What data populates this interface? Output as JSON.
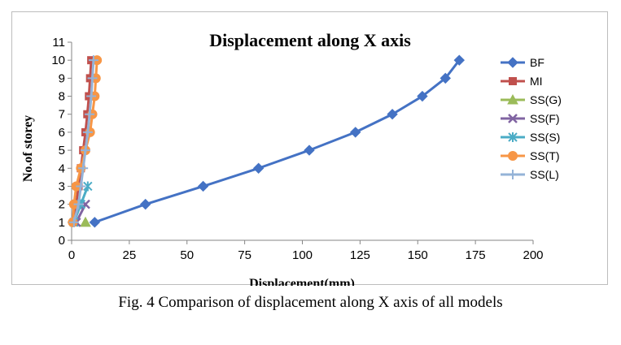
{
  "caption": "Fig. 4 Comparison of displacement along X axis of all models",
  "chart_data": {
    "type": "line",
    "title": "Displacement along X axis",
    "xlabel": "Displacement(mm)",
    "ylabel": "No.of storey",
    "xlim": [
      0,
      200
    ],
    "ylim": [
      0,
      11
    ],
    "xticks": [
      0,
      25,
      50,
      75,
      100,
      125,
      150,
      175,
      200
    ],
    "yticks": [
      0,
      1,
      2,
      3,
      4,
      5,
      6,
      7,
      8,
      9,
      10,
      11
    ],
    "grid": false,
    "legend_position": "right",
    "series": [
      {
        "name": "BF",
        "color": "#4472c4",
        "marker": "diamond",
        "points": [
          [
            10,
            1
          ],
          [
            32,
            2
          ],
          [
            57,
            3
          ],
          [
            81,
            4
          ],
          [
            103,
            5
          ],
          [
            123,
            6
          ],
          [
            139,
            7
          ],
          [
            152,
            8
          ],
          [
            162,
            9
          ],
          [
            168,
            10
          ]
        ]
      },
      {
        "name": "MI",
        "color": "#c0504d",
        "marker": "square",
        "points": [
          [
            1,
            1
          ],
          [
            2,
            2
          ],
          [
            3,
            3
          ],
          [
            4,
            4
          ],
          [
            5,
            5
          ],
          [
            6,
            6
          ],
          [
            6.8,
            7
          ],
          [
            7.5,
            8
          ],
          [
            8,
            9
          ],
          [
            8.5,
            10
          ]
        ]
      },
      {
        "name": "SS(G)",
        "color": "#9bbb59",
        "marker": "triangle",
        "points": [
          [
            6,
            1
          ]
        ]
      },
      {
        "name": "SS(F)",
        "color": "#8064a2",
        "marker": "x",
        "points": [
          [
            2,
            1
          ],
          [
            6,
            2
          ]
        ]
      },
      {
        "name": "SS(S)",
        "color": "#4bacc6",
        "marker": "star",
        "points": [
          [
            1,
            1
          ],
          [
            4,
            2
          ],
          [
            7,
            3
          ]
        ]
      },
      {
        "name": "SS(T)",
        "color": "#f79646",
        "marker": "circle",
        "points": [
          [
            0.5,
            1
          ],
          [
            1,
            2
          ],
          [
            2,
            3
          ],
          [
            4,
            4
          ],
          [
            6,
            5
          ],
          [
            8,
            6
          ],
          [
            9,
            7
          ],
          [
            10,
            8
          ],
          [
            10.5,
            9
          ],
          [
            11,
            10
          ]
        ]
      },
      {
        "name": "SS(L)",
        "color": "#95b3d7",
        "marker": "plus",
        "points": [
          [
            1,
            1
          ],
          [
            3,
            2
          ],
          [
            4,
            3
          ],
          [
            5,
            4
          ],
          [
            6,
            5
          ],
          [
            7,
            6
          ],
          [
            7.8,
            7
          ],
          [
            8.5,
            8
          ],
          [
            9,
            9
          ],
          [
            9.5,
            10
          ]
        ]
      }
    ]
  }
}
